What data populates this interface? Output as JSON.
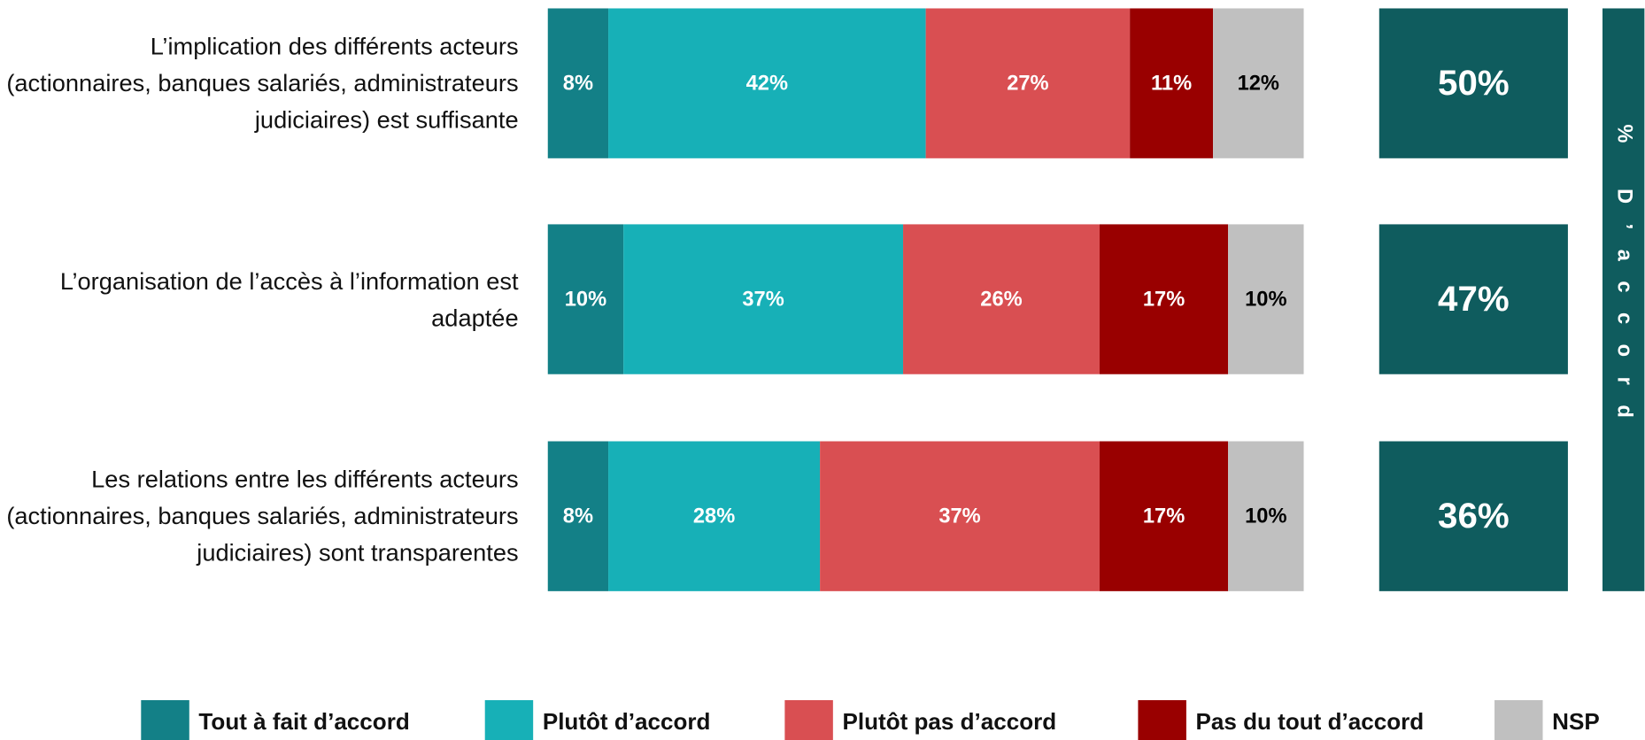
{
  "chart_data": {
    "type": "stacked_barh",
    "categories": [
      "L’implication des différents acteurs (actionnaires, banques salariés, administrateurs judiciaires) est suffisante",
      "L’organisation de l’accès à l’information est adaptée",
      "Les relations entre les différents acteurs (actionnaires, banques salariés, administrateurs judiciaires) sont transparentes"
    ],
    "xlim": [
      0,
      100
    ],
    "series": [
      {
        "name": "Tout à fait d’accord",
        "color": "#138087",
        "label_color": "#ffffff",
        "values": [
          8,
          10,
          8
        ],
        "value_labels": [
          "8%",
          "10%",
          "8%"
        ]
      },
      {
        "name": "Plutôt d’accord",
        "color": "#17b0b7",
        "label_color": "#ffffff",
        "values": [
          42,
          37,
          28
        ],
        "value_labels": [
          "42%",
          "37%",
          "28%"
        ]
      },
      {
        "name": "Plutôt pas d’accord",
        "color": "#d94f52",
        "label_color": "#ffffff",
        "values": [
          27,
          26,
          37
        ],
        "value_labels": [
          "27%",
          "26%",
          "37%"
        ]
      },
      {
        "name": "Pas du tout d’accord",
        "color": "#990000",
        "label_color": "#ffffff",
        "values": [
          11,
          17,
          17
        ],
        "value_labels": [
          "11%",
          "17%",
          "17%"
        ]
      },
      {
        "name": "NSP",
        "color": "#c0c0c0",
        "label_color": "#000000",
        "values": [
          12,
          10,
          10
        ],
        "value_labels": [
          "12%",
          "10%",
          "10%"
        ]
      }
    ],
    "agree_totals": {
      "label": "% D’accord",
      "color": "#0f5c5e",
      "values": [
        50,
        47,
        36
      ],
      "value_labels": [
        "50%",
        "47%",
        "36%"
      ]
    }
  }
}
